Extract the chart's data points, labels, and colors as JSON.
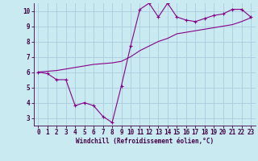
{
  "xlabel": "Windchill (Refroidissement éolien,°C)",
  "background_color": "#c8eaf0",
  "line_color": "#880088",
  "grid_color": "#aaccdd",
  "x_data": [
    0,
    1,
    2,
    3,
    4,
    5,
    6,
    7,
    8,
    9,
    10,
    11,
    12,
    13,
    14,
    15,
    16,
    17,
    18,
    19,
    20,
    21,
    22,
    23
  ],
  "y_jagged": [
    6.0,
    5.9,
    5.5,
    5.5,
    3.8,
    4.0,
    3.8,
    3.1,
    2.7,
    5.1,
    7.7,
    10.1,
    10.5,
    9.6,
    10.5,
    9.6,
    9.4,
    9.3,
    9.5,
    9.7,
    9.8,
    10.1,
    10.1,
    9.6
  ],
  "y_trend": [
    6.0,
    6.05,
    6.1,
    6.2,
    6.3,
    6.4,
    6.5,
    6.55,
    6.6,
    6.7,
    7.0,
    7.4,
    7.7,
    8.0,
    8.2,
    8.5,
    8.6,
    8.7,
    8.8,
    8.9,
    9.0,
    9.1,
    9.3,
    9.55
  ],
  "xlim": [
    -0.5,
    23.5
  ],
  "ylim": [
    2.5,
    10.5
  ],
  "yticks": [
    3,
    4,
    5,
    6,
    7,
    8,
    9,
    10
  ],
  "xticks": [
    0,
    1,
    2,
    3,
    4,
    5,
    6,
    7,
    8,
    9,
    10,
    11,
    12,
    13,
    14,
    15,
    16,
    17,
    18,
    19,
    20,
    21,
    22,
    23
  ],
  "tick_fontsize": 5.5,
  "xlabel_fontsize": 5.5,
  "spine_color": "#440044",
  "marker_size": 3,
  "linewidth": 0.8
}
